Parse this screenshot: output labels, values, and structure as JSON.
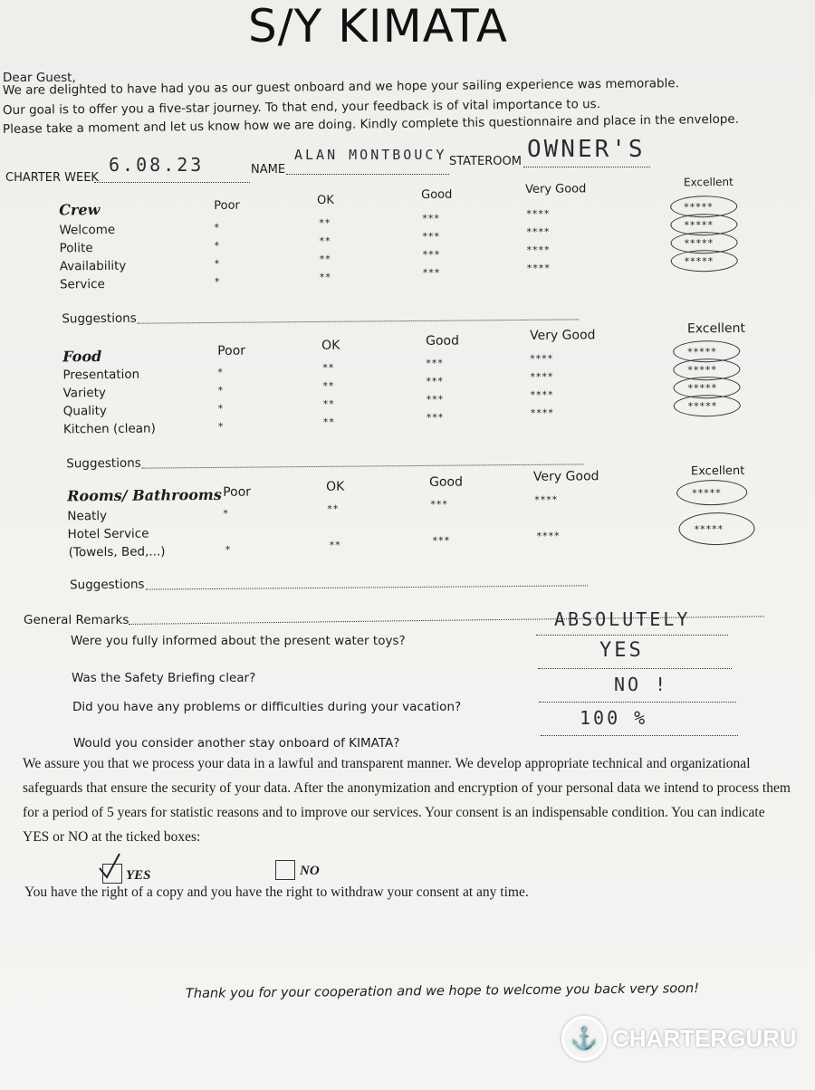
{
  "title": "S/Y KIMATA",
  "greeting": "Dear Guest,",
  "intro": [
    "We are delighted to have had you as our guest onboard and we hope your sailing experience was memorable.",
    "Our goal is to offer you a five-star journey. To that end, your feedback is of vital importance to us.",
    "Please take a moment and let us know how we are doing. Kindly complete this questionnaire and place in the envelope."
  ],
  "fields": {
    "charter_week_label": "CHARTER WEEK",
    "charter_week_value": "6.08.23",
    "name_label": "NAME",
    "name_value": "ALAN MONTBOUCY",
    "stateroom_label": "STATEROOM",
    "stateroom_value": "OWNER'S"
  },
  "scale": {
    "poor": "Poor",
    "ok": "OK",
    "good": "Good",
    "very_good": "Very Good",
    "excellent": "Excellent",
    "stars": [
      "*",
      "**",
      "***",
      "****",
      "*****"
    ]
  },
  "sections": [
    {
      "title": "Crew",
      "items": [
        "Welcome",
        "Polite",
        "Availability",
        "Service"
      ],
      "suggestions_label": "Suggestions",
      "selected": [
        "Excellent",
        "Excellent",
        "Excellent",
        "Excellent"
      ]
    },
    {
      "title": "Food",
      "items": [
        "Presentation",
        "Variety",
        "Quality",
        "Kitchen (clean)"
      ],
      "suggestions_label": "Suggestions",
      "selected": [
        "Excellent",
        "Excellent",
        "Excellent",
        "Excellent"
      ]
    },
    {
      "title": "Rooms/ Bathrooms",
      "items": [
        "Neatly",
        "Hotel Service",
        "(Towels, Bed,...)"
      ],
      "suggestions_label": "Suggestions",
      "selected": [
        "Excellent",
        "Excellent"
      ]
    }
  ],
  "general_remarks_label": "General Remarks",
  "questions": [
    {
      "q": "Were you fully informed about the present water toys?",
      "a": "ABSOLUTELY"
    },
    {
      "q": "Was the Safety Briefing clear?",
      "a": "YES"
    },
    {
      "q": "Did you have any problems or difficulties during your vacation?",
      "a": "NO !"
    },
    {
      "q": "Would you consider another stay onboard of KIMATA?",
      "a": "100 %"
    }
  ],
  "consent": {
    "lines": [
      "We assure you that we process your data in a lawful and transparent manner. We develop appropriate technical and organizational",
      "safeguards that ensure the security of your data. After the anonymization and encryption of your personal data we intend to process them",
      "for a period of 5 years for statistic reasons and to improve our services. Your consent is an indispensable condition. You can indicate",
      "YES or NO at the ticked boxes:"
    ],
    "yes_label": "YES",
    "yes_checked": true,
    "no_label": "NO",
    "no_checked": false,
    "rights": "You have the right of a copy and you have the right to withdraw your consent at any time."
  },
  "thanks": "Thank you for your cooperation and we hope to welcome you back very soon!",
  "watermark": "CHARTERGURU"
}
